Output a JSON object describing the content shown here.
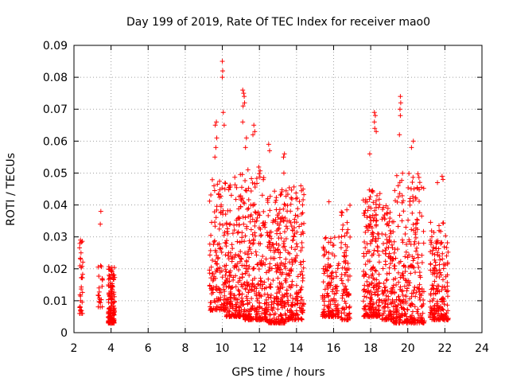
{
  "chart_data": {
    "type": "scatter",
    "title": "Day 199 of 2019, Rate Of TEC Index for receiver mao0",
    "xlabel": "GPS time / hours",
    "ylabel": "ROTI / TECUs",
    "xlim": [
      2,
      24
    ],
    "ylim": [
      0,
      0.09
    ],
    "x_ticks": [
      2,
      4,
      6,
      8,
      10,
      12,
      14,
      16,
      18,
      20,
      22,
      24
    ],
    "x_tick_labels": [
      "2",
      "4",
      "6",
      "8",
      "10",
      "12",
      "14",
      "16",
      "18",
      "20",
      "22",
      "24"
    ],
    "y_ticks": [
      0,
      0.01,
      0.02,
      0.03,
      0.04,
      0.05,
      0.06,
      0.07,
      0.08,
      0.09
    ],
    "y_tick_labels": [
      "0",
      "0.01",
      "0.02",
      "0.03",
      "0.04",
      "0.05",
      "0.06",
      "0.07",
      "0.08",
      "0.09"
    ],
    "grid": true,
    "marker": "+",
    "color": "#ff0000",
    "clusters": [
      {
        "x_range": [
          2.3,
          2.5
        ],
        "y_range": [
          0.006,
          0.029
        ],
        "count": 30
      },
      {
        "x_range": [
          3.3,
          3.55
        ],
        "y_range": [
          0.008,
          0.022
        ],
        "count": 20
      },
      {
        "x_range": [
          3.85,
          4.2
        ],
        "y_range": [
          0.003,
          0.021
        ],
        "count": 150
      },
      {
        "x_range": [
          9.3,
          10.2
        ],
        "y_range": [
          0.007,
          0.048
        ],
        "count": 150
      },
      {
        "x_range": [
          10.2,
          11.2
        ],
        "y_range": [
          0.005,
          0.05
        ],
        "count": 220
      },
      {
        "x_range": [
          11.2,
          12.4
        ],
        "y_range": [
          0.004,
          0.052
        ],
        "count": 260
      },
      {
        "x_range": [
          12.4,
          13.4
        ],
        "y_range": [
          0.003,
          0.045
        ],
        "count": 230
      },
      {
        "x_range": [
          13.4,
          14.4
        ],
        "y_range": [
          0.004,
          0.046
        ],
        "count": 200
      },
      {
        "x_range": [
          15.4,
          16.3
        ],
        "y_range": [
          0.005,
          0.03
        ],
        "count": 150
      },
      {
        "x_range": [
          16.4,
          16.9
        ],
        "y_range": [
          0.004,
          0.04
        ],
        "count": 90
      },
      {
        "x_range": [
          17.6,
          18.5
        ],
        "y_range": [
          0.005,
          0.045
        ],
        "count": 220
      },
      {
        "x_range": [
          18.6,
          19.2
        ],
        "y_range": [
          0.004,
          0.04
        ],
        "count": 120
      },
      {
        "x_range": [
          19.2,
          20.9
        ],
        "y_range": [
          0.003,
          0.05
        ],
        "count": 300
      },
      {
        "x_range": [
          21.2,
          22.2
        ],
        "y_range": [
          0.004,
          0.035
        ],
        "count": 200
      }
    ],
    "highlights": [
      {
        "x": 2.35,
        "y": 0.029
      },
      {
        "x": 2.38,
        "y": 0.025
      },
      {
        "x": 2.36,
        "y": 0.023
      },
      {
        "x": 3.45,
        "y": 0.038
      },
      {
        "x": 3.42,
        "y": 0.034
      },
      {
        "x": 3.44,
        "y": 0.021
      },
      {
        "x": 9.65,
        "y": 0.058
      },
      {
        "x": 9.7,
        "y": 0.061
      },
      {
        "x": 9.62,
        "y": 0.065
      },
      {
        "x": 9.68,
        "y": 0.066
      },
      {
        "x": 9.6,
        "y": 0.055
      },
      {
        "x": 9.55,
        "y": 0.046
      },
      {
        "x": 10.0,
        "y": 0.08
      },
      {
        "x": 10.02,
        "y": 0.082
      },
      {
        "x": 10.0,
        "y": 0.085
      },
      {
        "x": 10.05,
        "y": 0.069
      },
      {
        "x": 10.1,
        "y": 0.065
      },
      {
        "x": 11.1,
        "y": 0.076
      },
      {
        "x": 11.15,
        "y": 0.075
      },
      {
        "x": 11.18,
        "y": 0.074
      },
      {
        "x": 11.12,
        "y": 0.071
      },
      {
        "x": 11.2,
        "y": 0.072
      },
      {
        "x": 11.1,
        "y": 0.066
      },
      {
        "x": 11.7,
        "y": 0.065
      },
      {
        "x": 11.65,
        "y": 0.062
      },
      {
        "x": 11.75,
        "y": 0.063
      },
      {
        "x": 11.3,
        "y": 0.061
      },
      {
        "x": 11.25,
        "y": 0.058
      },
      {
        "x": 12.55,
        "y": 0.057
      },
      {
        "x": 12.5,
        "y": 0.059
      },
      {
        "x": 13.3,
        "y": 0.055
      },
      {
        "x": 13.35,
        "y": 0.056
      },
      {
        "x": 13.32,
        "y": 0.05
      },
      {
        "x": 15.75,
        "y": 0.041
      },
      {
        "x": 18.2,
        "y": 0.069
      },
      {
        "x": 18.25,
        "y": 0.068
      },
      {
        "x": 18.2,
        "y": 0.066
      },
      {
        "x": 18.22,
        "y": 0.064
      },
      {
        "x": 18.3,
        "y": 0.063
      },
      {
        "x": 17.95,
        "y": 0.056
      },
      {
        "x": 19.6,
        "y": 0.074
      },
      {
        "x": 19.62,
        "y": 0.072
      },
      {
        "x": 19.58,
        "y": 0.07
      },
      {
        "x": 19.6,
        "y": 0.068
      },
      {
        "x": 19.55,
        "y": 0.062
      },
      {
        "x": 20.2,
        "y": 0.058
      },
      {
        "x": 20.3,
        "y": 0.06
      },
      {
        "x": 21.85,
        "y": 0.049
      },
      {
        "x": 21.9,
        "y": 0.048
      },
      {
        "x": 21.6,
        "y": 0.047
      }
    ]
  }
}
